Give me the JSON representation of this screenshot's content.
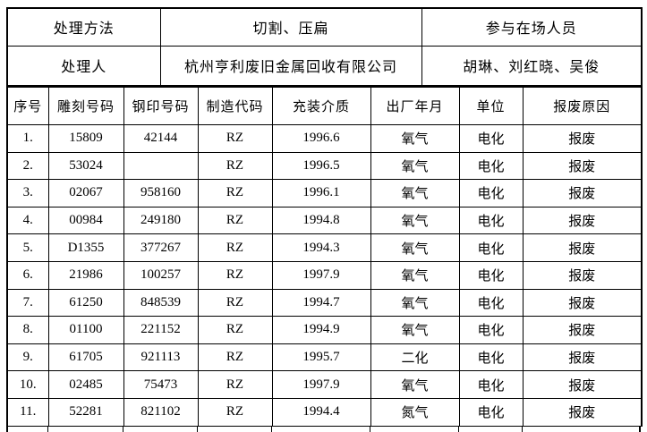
{
  "info": {
    "method_label": "处理方法",
    "method_value": "切割、压扁",
    "personnel_label": "参与在场人员",
    "handler_label": "处理人",
    "handler_value": "杭州亨利废旧金属回收有限公司",
    "personnel_value": "胡琳、刘红晓、吴俊"
  },
  "table": {
    "headers": [
      "序号",
      "雕刻号码",
      "钢印号码",
      "制造代码",
      "充装介质",
      "出厂年月",
      "单位",
      "报废原因"
    ],
    "rows": [
      [
        "1.",
        "15809",
        "42144",
        "RZ",
        "1996.6",
        "氧气",
        "电化",
        "报废"
      ],
      [
        "2.",
        "53024",
        "",
        "RZ",
        "1996.5",
        "氧气",
        "电化",
        "报废"
      ],
      [
        "3.",
        "02067",
        "958160",
        "RZ",
        "1996.1",
        "氧气",
        "电化",
        "报废"
      ],
      [
        "4.",
        "00984",
        "249180",
        "RZ",
        "1994.8",
        "氧气",
        "电化",
        "报废"
      ],
      [
        "5.",
        "D1355",
        "377267",
        "RZ",
        "1994.3",
        "氧气",
        "电化",
        "报废"
      ],
      [
        "6.",
        "21986",
        "100257",
        "RZ",
        "1997.9",
        "氧气",
        "电化",
        "报废"
      ],
      [
        "7.",
        "61250",
        "848539",
        "RZ",
        "1994.7",
        "氧气",
        "电化",
        "报废"
      ],
      [
        "8.",
        "01100",
        "221152",
        "RZ",
        "1994.9",
        "氧气",
        "电化",
        "报废"
      ],
      [
        "9.",
        "61705",
        "921113",
        "RZ",
        "1995.7",
        "二化",
        "电化",
        "报废"
      ],
      [
        "10.",
        "02485",
        "75473",
        "RZ",
        "1997.9",
        "氧气",
        "电化",
        "报废"
      ],
      [
        "11.",
        "52281",
        "821102",
        "RZ",
        "1994.4",
        "氮气",
        "电化",
        "报废"
      ]
    ]
  }
}
